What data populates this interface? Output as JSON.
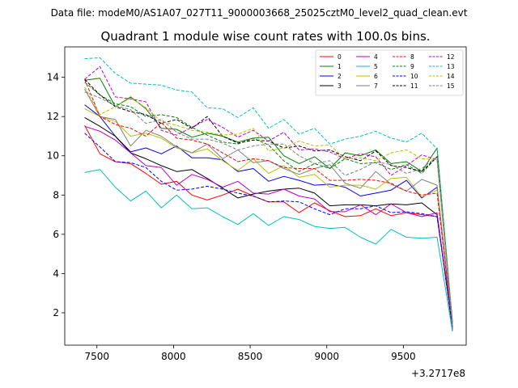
{
  "figure": {
    "suptitle": "Data file: modeM0/AS1A07_027T11_9000003668_25025cztM0_level2_quad_clean.evt"
  },
  "chart_data": {
    "type": "line",
    "title": "Quadrant 1 module wise count rates with 100.0s bins.",
    "xlabel": "",
    "ylabel": "",
    "x_offset_label": "+3.2717e8",
    "xlim": [
      7290,
      9910
    ],
    "ylim": [
      0.35,
      15.55
    ],
    "xticks": [
      7500,
      8000,
      8500,
      9000,
      9500
    ],
    "yticks": [
      2,
      4,
      6,
      8,
      10,
      12,
      14
    ],
    "legend_position": "top-right",
    "x": [
      7420,
      7520,
      7620,
      7720,
      7820,
      7920,
      8020,
      8120,
      8220,
      8320,
      8420,
      8520,
      8620,
      8720,
      8820,
      8920,
      9020,
      9120,
      9220,
      9320,
      9420,
      9520,
      9620,
      9720,
      9820
    ],
    "series": [
      {
        "name": "0",
        "color": "#ff0000",
        "dash": "solid",
        "values": [
          11.55,
          10.1,
          9.7,
          9.6,
          9.1,
          8.55,
          8.7,
          8.0,
          7.75,
          8.0,
          8.3,
          7.95,
          7.65,
          7.65,
          7.1,
          7.6,
          7.2,
          6.9,
          6.95,
          7.3,
          6.95,
          7.1,
          7.0,
          6.9,
          1.5
        ]
      },
      {
        "name": "1",
        "color": "#008000",
        "dash": "solid",
        "values": [
          13.85,
          13.95,
          12.5,
          13.0,
          12.4,
          11.4,
          11.35,
          10.95,
          11.15,
          11.0,
          10.7,
          10.9,
          10.95,
          10.0,
          9.6,
          9.95,
          9.35,
          10.15,
          10.0,
          10.3,
          9.6,
          9.7,
          9.2,
          10.4,
          1.5
        ]
      },
      {
        "name": "2",
        "color": "#0000ff",
        "dash": "solid",
        "values": [
          12.6,
          12.0,
          11.0,
          10.2,
          10.4,
          10.1,
          10.5,
          9.9,
          9.9,
          9.8,
          9.2,
          9.35,
          8.7,
          8.95,
          8.75,
          8.5,
          8.55,
          8.4,
          7.95,
          8.1,
          8.25,
          8.75,
          7.85,
          8.4,
          1.1
        ]
      },
      {
        "name": "3",
        "color": "#000000",
        "dash": "solid",
        "values": [
          11.95,
          11.5,
          11.0,
          10.15,
          9.85,
          9.5,
          9.2,
          9.3,
          8.85,
          8.35,
          7.85,
          8.05,
          8.2,
          8.3,
          8.35,
          8.1,
          7.45,
          7.5,
          7.5,
          7.45,
          7.55,
          7.5,
          7.6,
          7.0,
          1.2
        ]
      },
      {
        "name": "4",
        "color": "#bf00bf",
        "dash": "solid",
        "values": [
          11.5,
          11.25,
          10.8,
          10.15,
          9.5,
          9.4,
          8.5,
          9.05,
          8.8,
          8.4,
          8.7,
          8.1,
          8.05,
          8.3,
          7.95,
          7.8,
          7.15,
          7.15,
          7.5,
          7.0,
          7.55,
          7.1,
          6.9,
          7.1,
          1.2
        ]
      },
      {
        "name": "5",
        "color": "#00bfbf",
        "dash": "solid",
        "values": [
          9.15,
          9.3,
          8.4,
          7.7,
          8.2,
          7.35,
          8.0,
          7.3,
          7.35,
          6.9,
          6.5,
          7.05,
          6.45,
          6.9,
          6.75,
          6.4,
          6.3,
          6.35,
          5.85,
          5.5,
          6.25,
          5.85,
          5.8,
          5.85,
          1.05
        ]
      },
      {
        "name": "6",
        "color": "#bfbf00",
        "dash": "solid",
        "values": [
          12.4,
          12.0,
          11.75,
          11.0,
          11.15,
          10.9,
          10.4,
          10.15,
          10.35,
          9.75,
          9.25,
          9.85,
          9.1,
          9.5,
          8.9,
          9.05,
          8.4,
          8.5,
          8.5,
          8.3,
          8.85,
          8.9,
          7.9,
          8.25,
          1.3
        ]
      },
      {
        "name": "7",
        "color": "#808080",
        "dash": "solid",
        "values": [
          13.4,
          12.0,
          11.85,
          10.5,
          11.3,
          11.0,
          10.45,
          10.15,
          10.6,
          9.85,
          10.3,
          9.65,
          9.75,
          9.35,
          9.05,
          9.35,
          9.55,
          8.6,
          8.35,
          9.2,
          8.55,
          8.2,
          8.8,
          8.5,
          1.35
        ]
      },
      {
        "name": "8",
        "color": "#ff0000",
        "dash": "dashed",
        "values": [
          13.9,
          12.0,
          11.6,
          11.4,
          11.0,
          11.7,
          10.9,
          10.8,
          10.6,
          10.15,
          9.7,
          9.85,
          9.75,
          9.4,
          9.35,
          9.35,
          8.75,
          8.75,
          8.8,
          8.75,
          8.6,
          8.2,
          8.0,
          8.1,
          1.4
        ]
      },
      {
        "name": "9",
        "color": "#008000",
        "dash": "dashed",
        "values": [
          13.75,
          13.1,
          12.65,
          12.5,
          12.0,
          12.1,
          11.95,
          11.45,
          11.05,
          10.7,
          10.6,
          10.9,
          10.55,
          9.75,
          9.2,
          9.6,
          9.35,
          9.85,
          9.6,
          9.65,
          9.3,
          9.55,
          9.1,
          9.95,
          1.5
        ]
      },
      {
        "name": "10",
        "color": "#0000ff",
        "dash": "dashed",
        "values": [
          11.15,
          10.45,
          9.7,
          9.65,
          9.4,
          8.7,
          8.25,
          8.3,
          8.45,
          8.3,
          8.1,
          7.95,
          7.65,
          7.7,
          7.65,
          7.3,
          7.0,
          7.3,
          7.3,
          7.45,
          7.1,
          7.15,
          7.05,
          6.9,
          1.3
        ]
      },
      {
        "name": "11",
        "color": "#000000",
        "dash": "dashed",
        "values": [
          13.9,
          13.1,
          12.5,
          12.25,
          12.1,
          11.65,
          11.85,
          11.4,
          12.0,
          11.0,
          10.65,
          10.8,
          10.75,
          10.4,
          10.5,
          10.25,
          10.3,
          9.95,
          9.75,
          10.25,
          9.5,
          9.4,
          9.2,
          9.95,
          1.5
        ]
      },
      {
        "name": "12",
        "color": "#bf00bf",
        "dash": "dashed",
        "values": [
          13.9,
          14.55,
          13.0,
          12.9,
          12.75,
          11.3,
          11.05,
          11.45,
          11.85,
          11.45,
          10.95,
          11.3,
          10.75,
          11.2,
          10.3,
          10.35,
          10.2,
          9.85,
          10.1,
          9.95,
          9.0,
          9.5,
          10.05,
          9.8,
          1.4
        ]
      },
      {
        "name": "13",
        "color": "#00bfbf",
        "dash": "dashed",
        "values": [
          14.95,
          15.0,
          14.2,
          13.7,
          13.65,
          13.6,
          13.35,
          13.25,
          12.45,
          12.4,
          11.95,
          12.45,
          11.4,
          11.85,
          11.1,
          11.4,
          10.6,
          10.85,
          11.0,
          11.25,
          10.9,
          10.7,
          11.15,
          10.35,
          1.6
        ]
      },
      {
        "name": "14",
        "color": "#bfbf00",
        "dash": "dashed",
        "values": [
          13.5,
          12.1,
          12.5,
          12.95,
          12.45,
          11.75,
          11.55,
          11.3,
          11.2,
          11.05,
          11.1,
          11.4,
          10.25,
          10.4,
          10.75,
          10.5,
          10.55,
          9.85,
          9.9,
          9.75,
          10.15,
          10.3,
          9.85,
          9.8,
          1.45
        ]
      },
      {
        "name": "15",
        "color": "#808080",
        "dash": "dashed",
        "values": [
          13.25,
          12.95,
          12.55,
          12.35,
          11.65,
          11.85,
          11.2,
          10.85,
          10.85,
          10.65,
          10.3,
          10.5,
          10.6,
          10.6,
          10.0,
          9.6,
          9.75,
          9.0,
          9.3,
          9.7,
          9.55,
          9.1,
          9.35,
          9.95,
          1.4
        ]
      }
    ]
  }
}
